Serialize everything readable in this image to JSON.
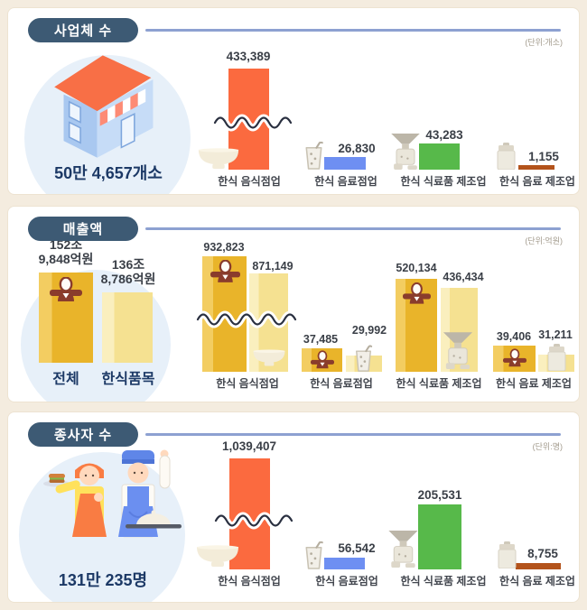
{
  "colors": {
    "background": "#f4ecdf",
    "panel": "#ffffff",
    "pill_navy": "#3d5a74",
    "header_line": "#8da1d1",
    "headline_navy": "#1c3966",
    "value_text": "#3a3f47",
    "category_text": "#42464e",
    "orange": "#fb6a3f",
    "blue": "#6e8ff2",
    "green": "#57b94a",
    "brown": "#b3531b",
    "gold": "#e9b42a",
    "gold_light": "#f3cd61",
    "yellow": "#f5e191",
    "yellow_light": "#faefbe",
    "circle_bg": "#e7f0f9",
    "worker_maroon": "#8a3c2c"
  },
  "sections": [
    {
      "id": "businesses",
      "title": "사업체 수",
      "unit": "(단위:개소)",
      "summary": {
        "icon": "store-icon",
        "value": "50만 4,657개소"
      },
      "groups": [
        {
          "label": "한식 음식점업",
          "value": "433,389",
          "icon": "bowl-icon"
        },
        {
          "label": "한식 음료점업",
          "value": "26,830",
          "icon": "cup-icon"
        },
        {
          "label": "한식 식료품 제조업",
          "value": "43,283",
          "icon": "mill-icon"
        },
        {
          "label": "한식 음료 제조업",
          "value": "1,155",
          "icon": "canister-icon"
        }
      ]
    },
    {
      "id": "sales",
      "title": "매출액",
      "unit": "(단위:억원)",
      "overview": {
        "bars": [
          {
            "label": "전체",
            "line1": "152조",
            "line2": "9,848억원"
          },
          {
            "label": "한식품목",
            "line1": "136조",
            "line2": "8,786억원"
          }
        ]
      },
      "groups": [
        {
          "label": "한식 음식점업",
          "total": "932,823",
          "hansik": "871,149",
          "icon": "bowl-icon"
        },
        {
          "label": "한식 음료점업",
          "total": "37,485",
          "hansik": "29,992",
          "icon": "cup-icon"
        },
        {
          "label": "한식 식료품 제조업",
          "total": "520,134",
          "hansik": "436,434",
          "icon": "mill-icon"
        },
        {
          "label": "한식 음료 제조업",
          "total": "39,406",
          "hansik": "31,211",
          "icon": "canister-icon"
        }
      ]
    },
    {
      "id": "workers",
      "title": "종사자 수",
      "unit": "(단위:명)",
      "summary": {
        "icon": "chefs-icon",
        "value": "131만 235명"
      },
      "groups": [
        {
          "label": "한식 음식점업",
          "value": "1,039,407",
          "icon": "bowl-icon"
        },
        {
          "label": "한식 음료점업",
          "value": "56,542",
          "icon": "cup-icon"
        },
        {
          "label": "한식 식료품 제조업",
          "value": "205,531",
          "icon": "mill-icon"
        },
        {
          "label": "한식 음료 제조업",
          "value": "8,755",
          "icon": "canister-icon"
        }
      ]
    }
  ],
  "chart_data": [
    {
      "type": "bar",
      "title": "사업체 수",
      "unit": "개소",
      "total_label": "50만 4,657개소",
      "total_value": 504657,
      "categories": [
        "한식 음식점업",
        "한식 음료점업",
        "한식 식료품 제조업",
        "한식 음료 제조업"
      ],
      "values": [
        433389,
        26830,
        43283,
        1155
      ],
      "bar_colors": [
        "#fb6a3f",
        "#6e8ff2",
        "#57b94a",
        "#b3531b"
      ],
      "axis_break": [
        "한식 음식점업"
      ],
      "grid": false,
      "legend": "none"
    },
    {
      "type": "bar",
      "title": "매출액",
      "unit": "억원",
      "overview": {
        "categories": [
          "전체",
          "한식품목"
        ],
        "values": [
          1529848,
          1368786
        ],
        "value_labels": [
          "152조 9,848억원",
          "136조 8,786억원"
        ]
      },
      "categories": [
        "한식 음식점업",
        "한식 음료점업",
        "한식 식료품 제조업",
        "한식 음료 제조업"
      ],
      "series": [
        {
          "name": "전체",
          "values": [
            932823,
            37485,
            520134,
            39406
          ]
        },
        {
          "name": "한식품목",
          "values": [
            871149,
            29992,
            436434,
            31211
          ]
        }
      ],
      "axis_break": [
        "한식 음식점업"
      ],
      "grid": false,
      "legend": "none"
    },
    {
      "type": "bar",
      "title": "종사자 수",
      "unit": "명",
      "total_label": "131만 235명",
      "total_value": 1310235,
      "categories": [
        "한식 음식점업",
        "한식 음료점업",
        "한식 식료품 제조업",
        "한식 음료 제조업"
      ],
      "values": [
        1039407,
        56542,
        205531,
        8755
      ],
      "bar_colors": [
        "#fb6a3f",
        "#6e8ff2",
        "#57b94a",
        "#b3531b"
      ],
      "axis_break": [
        "한식 음식점업"
      ],
      "grid": false,
      "legend": "none"
    }
  ]
}
